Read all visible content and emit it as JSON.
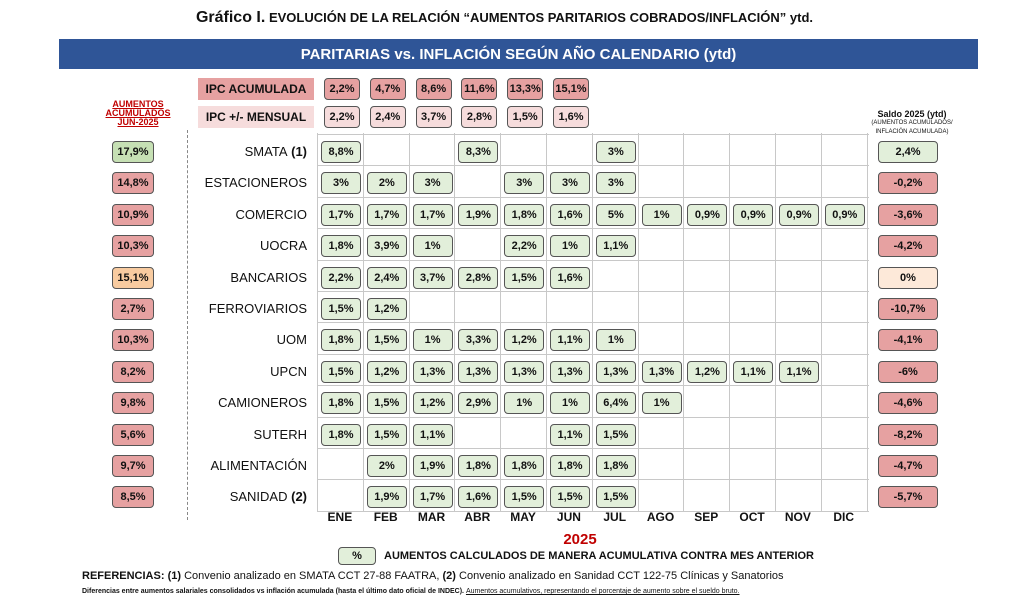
{
  "title": {
    "prefix": "Gráfico I.",
    "text": "EVOLUCIÓN DE LA RELACIÓN “AUMENTOS PARITARIOS COBRADOS/INFLACIÓN” ytd."
  },
  "banner": "PARITARIAS vs. INFLACIÓN SEGÚN AÑO CALENDARIO (ytd)",
  "ipc_acumulada_label": "IPC ACUMULADA",
  "ipc_mensual_label": "IPC +/- MENSUAL",
  "acumulados_title": "AUMENTOS ACUMULADOS JUN-2025",
  "saldo_title": "Saldo 2025 (ytd)",
  "saldo_subtitle": "(AUMENTOS ACUMULADOS/ INFLACIÓN ACUMULADA)",
  "year": "2025",
  "legend_box": "%",
  "legend_text": "AUMENTOS CALCULADOS DE MANERA ACUMULATIVA CONTRA MES ANTERIOR",
  "refs_label": "REFERENCIAS:",
  "refs_1_tag": "(1)",
  "refs_1_text": " Convenio analizado en SMATA CCT 27-88 FAATRA, ",
  "refs_2_tag": "(2)",
  "refs_2_text": " Convenio analizado en Sanidad CCT 122-75 Clínicas y Sanatorios",
  "footnote_a": "Diferencias entre aumentos salariales consolidados vs inflación acumulada (hasta el último dato oficial de INDEC).",
  "footnote_b": "Aumentos acumulativos, representando el porcentaje de aumento sobre el sueldo bruto.",
  "colors": {
    "banner": "#2f5597",
    "negative": "#e6a1a1",
    "positive": "#e2efda",
    "zero": "#fde9d9",
    "accent_red": "#c00000"
  },
  "chart_data": {
    "type": "table",
    "months": [
      "ENE",
      "FEB",
      "MAR",
      "ABR",
      "MAY",
      "JUN",
      "JUL",
      "AGO",
      "SEP",
      "OCT",
      "NOV",
      "DIC"
    ],
    "ipc_acumulada": [
      "2,2%",
      "4,7%",
      "8,6%",
      "11,6%",
      "13,3%",
      "15,1%"
    ],
    "ipc_mensual": [
      "2,2%",
      "2,4%",
      "3,7%",
      "2,8%",
      "1,5%",
      "1,6%"
    ],
    "rows": [
      {
        "name": "SMATA",
        "tag": "(1)",
        "acumulado": "17,9%",
        "acum_color": "green",
        "monthly": [
          "8,8%",
          "",
          "",
          "8,3%",
          "",
          "",
          "3%",
          "",
          "",
          "",
          "",
          ""
        ],
        "saldo": "2,4%",
        "saldo_sign": "pos"
      },
      {
        "name": "ESTACIONEROS",
        "tag": "",
        "acumulado": "14,8%",
        "acum_color": "red",
        "monthly": [
          "3%",
          "2%",
          "3%",
          "",
          "3%",
          "3%",
          "3%",
          "",
          "",
          "",
          "",
          ""
        ],
        "saldo": "-0,2%",
        "saldo_sign": "neg"
      },
      {
        "name": "COMERCIO",
        "tag": "",
        "acumulado": "10,9%",
        "acum_color": "red",
        "monthly": [
          "1,7%",
          "1,7%",
          "1,7%",
          "1,9%",
          "1,8%",
          "1,6%",
          "5%",
          "1%",
          "0,9%",
          "0,9%",
          "0,9%",
          "0,9%"
        ],
        "saldo": "-3,6%",
        "saldo_sign": "neg"
      },
      {
        "name": "UOCRA",
        "tag": "",
        "acumulado": "10,3%",
        "acum_color": "red",
        "monthly": [
          "1,8%",
          "3,9%",
          "1%",
          "",
          "2,2%",
          "1%",
          "1,1%",
          "",
          "",
          "",
          "",
          ""
        ],
        "saldo": "-4,2%",
        "saldo_sign": "neg"
      },
      {
        "name": "BANCARIOS",
        "tag": "",
        "acumulado": "15,1%",
        "acum_color": "orange",
        "monthly": [
          "2,2%",
          "2,4%",
          "3,7%",
          "2,8%",
          "1,5%",
          "1,6%",
          "",
          "",
          "",
          "",
          "",
          ""
        ],
        "saldo": "0%",
        "saldo_sign": "zero"
      },
      {
        "name": "FERROVIARIOS",
        "tag": "",
        "acumulado": "2,7%",
        "acum_color": "red",
        "monthly": [
          "1,5%",
          "1,2%",
          "",
          "",
          "",
          "",
          "",
          "",
          "",
          "",
          "",
          ""
        ],
        "saldo": "-10,7%",
        "saldo_sign": "neg"
      },
      {
        "name": "UOM",
        "tag": "",
        "acumulado": "10,3%",
        "acum_color": "red",
        "monthly": [
          "1,8%",
          "1,5%",
          "1%",
          "3,3%",
          "1,2%",
          "1,1%",
          "1%",
          "",
          "",
          "",
          "",
          ""
        ],
        "saldo": "-4,1%",
        "saldo_sign": "neg"
      },
      {
        "name": "UPCN",
        "tag": "",
        "acumulado": "8,2%",
        "acum_color": "red",
        "monthly": [
          "1,5%",
          "1,2%",
          "1,3%",
          "1,3%",
          "1,3%",
          "1,3%",
          "1,3%",
          "1,3%",
          "1,2%",
          "1,1%",
          "1,1%",
          ""
        ],
        "saldo": "-6%",
        "saldo_sign": "neg"
      },
      {
        "name": "CAMIONEROS",
        "tag": "",
        "acumulado": "9,8%",
        "acum_color": "red",
        "monthly": [
          "1,8%",
          "1,5%",
          "1,2%",
          "2,9%",
          "1%",
          "1%",
          "6,4%",
          "1%",
          "",
          "",
          "",
          ""
        ],
        "saldo": "-4,6%",
        "saldo_sign": "neg"
      },
      {
        "name": "SUTERH",
        "tag": "",
        "acumulado": "5,6%",
        "acum_color": "red",
        "monthly": [
          "1,8%",
          "1,5%",
          "1,1%",
          "",
          "",
          "1,1%",
          "1,5%",
          "",
          "",
          "",
          "",
          ""
        ],
        "saldo": "-8,2%",
        "saldo_sign": "neg"
      },
      {
        "name": "ALIMENTACIÓN",
        "tag": "",
        "acumulado": "9,7%",
        "acum_color": "red",
        "monthly": [
          "",
          "2%",
          "1,9%",
          "1,8%",
          "1,8%",
          "1,8%",
          "1,8%",
          "",
          "",
          "",
          "",
          ""
        ],
        "saldo": "-4,7%",
        "saldo_sign": "neg"
      },
      {
        "name": "SANIDAD",
        "tag": "(2)",
        "acumulado": "8,5%",
        "acum_color": "red",
        "monthly": [
          "",
          "1,9%",
          "1,7%",
          "1,6%",
          "1,5%",
          "1,5%",
          "1,5%",
          "",
          "",
          "",
          "",
          ""
        ],
        "saldo": "-5,7%",
        "saldo_sign": "neg"
      }
    ]
  }
}
